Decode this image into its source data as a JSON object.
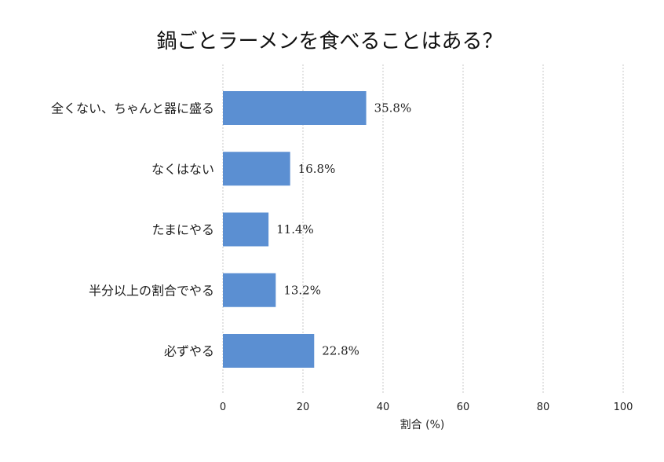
{
  "chart_data": {
    "type": "bar",
    "orientation": "horizontal",
    "title": "鍋ごとラーメンを食べることはある？",
    "xlabel": "割合 (%)",
    "ylabel": "",
    "xlim": [
      0,
      100
    ],
    "xticks": [
      0,
      20,
      40,
      60,
      80,
      100
    ],
    "grid": true,
    "bar_color": "#5b8fd2",
    "categories": [
      "全くない、ちゃんと器に盛る",
      "なくはない",
      "たまにやる",
      "半分以上の割合でやる",
      "必ずやる"
    ],
    "values": [
      35.8,
      16.8,
      11.4,
      13.2,
      22.8
    ],
    "data_labels": [
      "35.8%",
      "16.8%",
      "11.4%",
      "13.2%",
      "22.8%"
    ]
  }
}
